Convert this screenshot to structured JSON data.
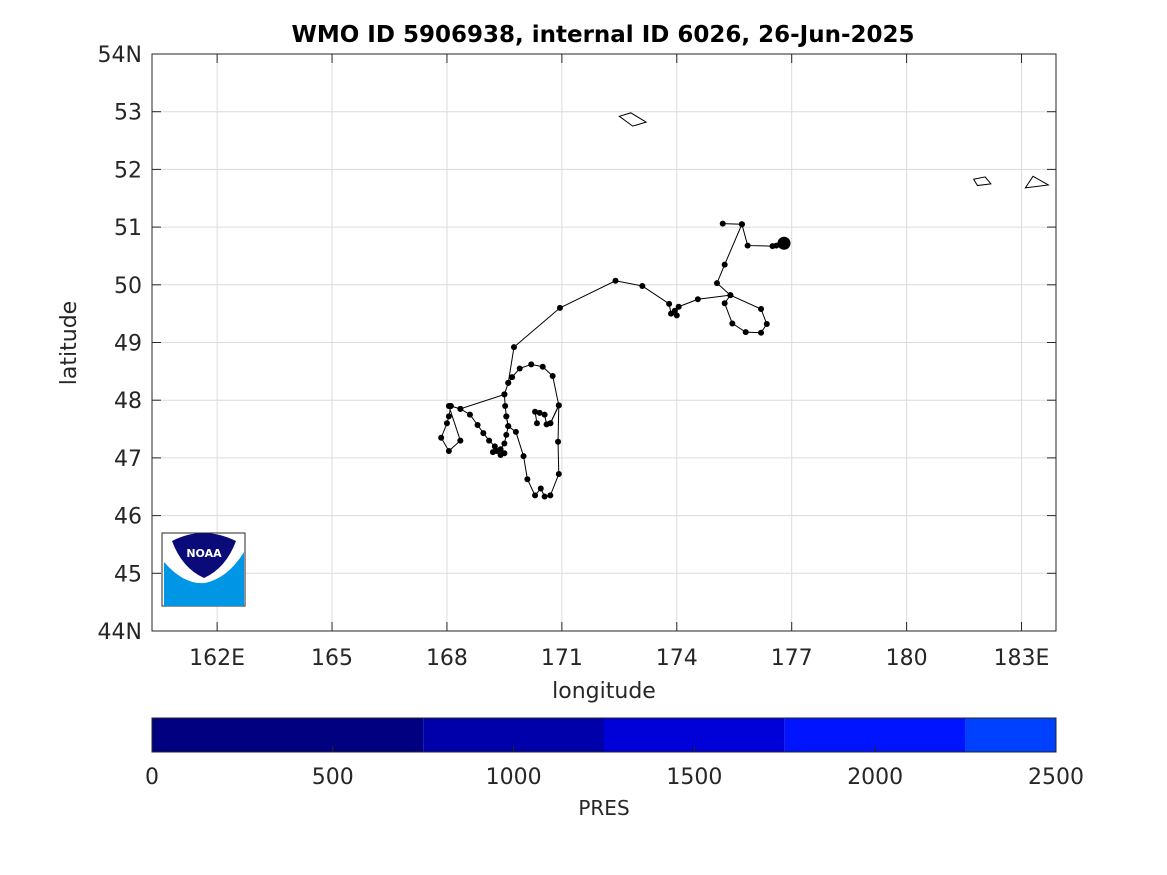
{
  "map": {
    "title": "WMO ID 5906938, internal ID 6026, 26-Jun-2025",
    "xlabel": "longitude",
    "ylabel": "latitude",
    "xlim": [
      160.3,
      183.9
    ],
    "ylim": [
      44,
      54
    ],
    "x_ticks": [
      {
        "value": 162,
        "label": "162E"
      },
      {
        "value": 165,
        "label": "165"
      },
      {
        "value": 168,
        "label": "168"
      },
      {
        "value": 171,
        "label": "171"
      },
      {
        "value": 174,
        "label": "174"
      },
      {
        "value": 177,
        "label": "177"
      },
      {
        "value": 180,
        "label": "180"
      },
      {
        "value": 183,
        "label": "183E"
      }
    ],
    "y_ticks": [
      {
        "value": 44,
        "label": "44N"
      },
      {
        "value": 45,
        "label": "45"
      },
      {
        "value": 46,
        "label": "46"
      },
      {
        "value": 47,
        "label": "47"
      },
      {
        "value": 48,
        "label": "48"
      },
      {
        "value": 49,
        "label": "49"
      },
      {
        "value": 50,
        "label": "50"
      },
      {
        "value": 51,
        "label": "51"
      },
      {
        "value": 52,
        "label": "52"
      },
      {
        "value": 53,
        "label": "53"
      },
      {
        "value": 54,
        "label": "54N"
      }
    ],
    "grid": true,
    "trajectory_color": "#000000",
    "trajectory": [
      [
        175.2,
        51.06
      ],
      [
        175.7,
        51.05
      ],
      [
        175.85,
        50.68
      ],
      [
        176.5,
        50.67
      ],
      [
        176.6,
        50.68
      ],
      [
        176.75,
        50.7
      ],
      [
        176.8,
        50.72
      ]
    ],
    "trajectory_full": [
      [
        170.7,
        47.6
      ],
      [
        170.92,
        47.91
      ],
      [
        170.76,
        48.42
      ],
      [
        170.5,
        48.58
      ],
      [
        170.2,
        48.62
      ],
      [
        169.9,
        48.55
      ],
      [
        169.7,
        48.4
      ],
      [
        169.6,
        48.3
      ],
      [
        169.5,
        48.1
      ],
      [
        169.52,
        47.9
      ],
      [
        169.55,
        47.72
      ],
      [
        169.6,
        47.55
      ],
      [
        169.55,
        47.4
      ],
      [
        169.5,
        47.25
      ],
      [
        169.4,
        47.15
      ],
      [
        169.5,
        47.08
      ],
      [
        169.4,
        47.05
      ],
      [
        169.3,
        47.12
      ],
      [
        169.2,
        47.1
      ],
      [
        169.25,
        47.2
      ],
      [
        169.1,
        47.3
      ],
      [
        168.95,
        47.43
      ],
      [
        168.8,
        47.57
      ],
      [
        168.6,
        47.75
      ],
      [
        168.35,
        47.85
      ],
      [
        168.1,
        47.9
      ],
      [
        168.05,
        47.72
      ],
      [
        168.0,
        47.6
      ],
      [
        167.85,
        47.35
      ],
      [
        168.05,
        47.12
      ],
      [
        168.35,
        47.3
      ],
      [
        168.05,
        47.9
      ],
      [
        168.1,
        47.9
      ],
      [
        168.35,
        47.85
      ],
      [
        169.5,
        48.1
      ],
      [
        169.6,
        48.3
      ],
      [
        169.75,
        48.92
      ],
      [
        170.95,
        49.6
      ],
      [
        172.4,
        50.07
      ],
      [
        173.1,
        49.98
      ],
      [
        173.8,
        49.67
      ],
      [
        173.85,
        49.5
      ],
      [
        174.0,
        49.47
      ],
      [
        173.95,
        49.55
      ],
      [
        174.05,
        49.62
      ],
      [
        174.55,
        49.75
      ],
      [
        175.4,
        49.82
      ],
      [
        175.25,
        49.68
      ],
      [
        175.45,
        49.33
      ],
      [
        175.8,
        49.18
      ],
      [
        176.2,
        49.17
      ],
      [
        176.35,
        49.32
      ],
      [
        176.2,
        49.58
      ],
      [
        175.4,
        49.82
      ],
      [
        175.05,
        50.03
      ],
      [
        175.25,
        50.35
      ],
      [
        175.7,
        51.05
      ],
      [
        175.2,
        51.06
      ],
      [
        175.7,
        51.05
      ],
      [
        175.85,
        50.68
      ],
      [
        176.5,
        50.67
      ],
      [
        176.6,
        50.68
      ],
      [
        176.75,
        50.7
      ],
      [
        176.8,
        50.72
      ]
    ],
    "loop_lower": [
      [
        169.55,
        47.72
      ],
      [
        169.6,
        47.55
      ],
      [
        169.8,
        47.45
      ],
      [
        170.0,
        47.03
      ],
      [
        170.1,
        46.63
      ],
      [
        170.3,
        46.35
      ],
      [
        170.45,
        46.47
      ],
      [
        170.55,
        46.33
      ],
      [
        170.7,
        46.35
      ],
      [
        170.92,
        46.72
      ],
      [
        170.9,
        47.28
      ],
      [
        170.92,
        47.91
      ],
      [
        170.7,
        47.6
      ],
      [
        170.6,
        47.58
      ],
      [
        170.55,
        47.75
      ],
      [
        170.42,
        47.78
      ],
      [
        170.3,
        47.8
      ],
      [
        170.35,
        47.6
      ]
    ],
    "last_position": {
      "lon": 176.8,
      "lat": 50.72
    },
    "land_outlines": [
      [
        [
          172.5,
          52.92
        ],
        [
          172.8,
          52.98
        ],
        [
          173.2,
          52.82
        ],
        [
          172.85,
          52.75
        ],
        [
          172.5,
          52.92
        ]
      ],
      [
        [
          181.75,
          51.83
        ],
        [
          182.05,
          51.87
        ],
        [
          182.2,
          51.75
        ],
        [
          181.85,
          51.72
        ],
        [
          181.75,
          51.83
        ]
      ],
      [
        [
          183.1,
          51.68
        ],
        [
          183.3,
          51.88
        ],
        [
          183.7,
          51.73
        ],
        [
          183.1,
          51.68
        ]
      ]
    ],
    "logo": {
      "text": "NOAA",
      "dark": "#0a0a78",
      "light": "#0096e6"
    }
  },
  "colorbar": {
    "label": "PRES",
    "range": [
      0,
      2500
    ],
    "tick_labels": [
      "0",
      "500",
      "1000",
      "1500",
      "2000",
      "2500"
    ],
    "tick_values": [
      0,
      500,
      1000,
      1500,
      2000,
      2500
    ],
    "bands": [
      {
        "from": 0,
        "to": 750,
        "color": "#000080"
      },
      {
        "from": 750,
        "to": 1250,
        "color": "#0000aa"
      },
      {
        "from": 1250,
        "to": 1750,
        "color": "#0000d8"
      },
      {
        "from": 1750,
        "to": 2250,
        "color": "#0014ff"
      },
      {
        "from": 2250,
        "to": 2500,
        "color": "#0040ff"
      }
    ]
  }
}
